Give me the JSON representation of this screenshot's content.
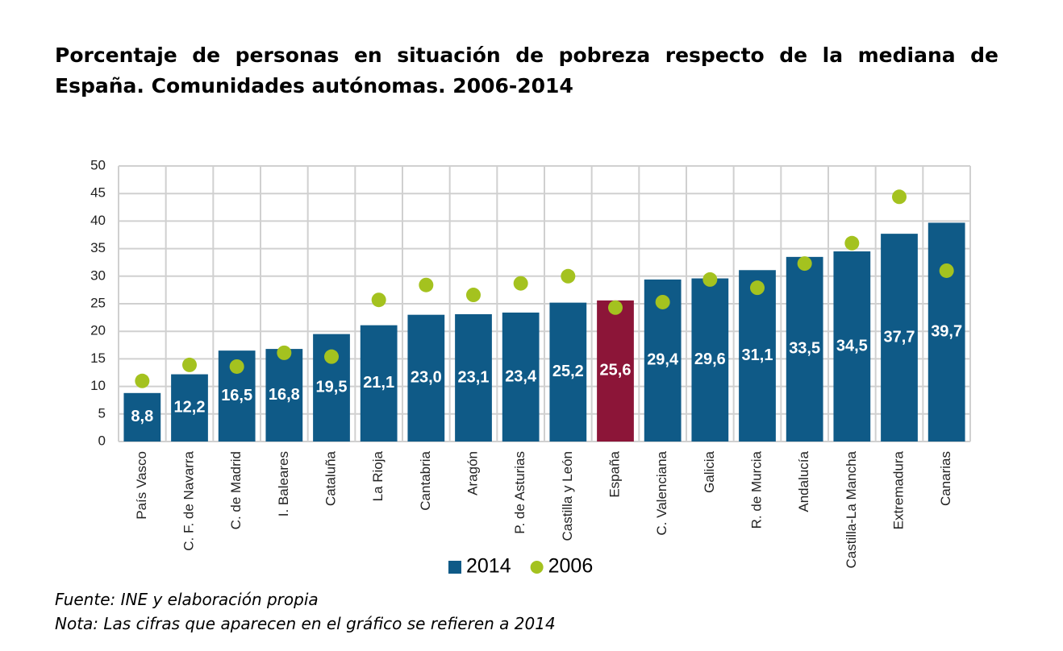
{
  "chart_data": {
    "type": "bar",
    "title": "Porcentaje de personas en situación de pobreza respecto de la mediana de España. Comunidades autónomas. 2006-2014",
    "categories": [
      "País Vasco",
      "C. F. de Navarra",
      "C. de Madrid",
      "I. Baleares",
      "Cataluña",
      "La Rioja",
      "Cantabria",
      "Aragón",
      "P. de Asturias",
      "Castilla y León",
      "España",
      "C. Valenciana",
      "Galicia",
      "R. de Murcia",
      "Andalucía",
      "Castilla-La Mancha",
      "Extremadura",
      "Canarias"
    ],
    "series": [
      {
        "name": "2014",
        "color": "#0f5a87",
        "colors": [
          "#0f5a87",
          "#0f5a87",
          "#0f5a87",
          "#0f5a87",
          "#0f5a87",
          "#0f5a87",
          "#0f5a87",
          "#0f5a87",
          "#0f5a87",
          "#0f5a87",
          "#8c1538",
          "#0f5a87",
          "#0f5a87",
          "#0f5a87",
          "#0f5a87",
          "#0f5a87",
          "#0f5a87",
          "#0f5a87"
        ],
        "values": [
          8.8,
          12.2,
          16.5,
          16.8,
          19.5,
          21.1,
          23.0,
          23.1,
          23.4,
          25.2,
          25.6,
          29.4,
          29.6,
          31.1,
          33.5,
          34.5,
          37.7,
          39.7
        ],
        "value_labels": [
          "8,8",
          "12,2",
          "16,5",
          "16,8",
          "19,5",
          "21,1",
          "23,0",
          "23,1",
          "23,4",
          "25,2",
          "25,6",
          "29,4",
          "29,6",
          "31,1",
          "33,5",
          "34,5",
          "37,7",
          "39,7"
        ]
      },
      {
        "name": "2006",
        "type": "scatter",
        "color": "#a4c21f",
        "values": [
          11.0,
          13.9,
          13.6,
          16.1,
          15.4,
          25.7,
          28.4,
          26.6,
          28.7,
          30.0,
          24.3,
          25.3,
          29.4,
          27.9,
          32.3,
          36.0,
          44.4,
          31.0
        ]
      }
    ],
    "ylim": [
      0,
      50
    ],
    "yticks": [
      0,
      5,
      10,
      15,
      20,
      25,
      30,
      35,
      40,
      45,
      50
    ],
    "grid": true,
    "legend": "bottom",
    "notes": [
      "Fuente: INE y elaboración propia",
      "Nota: Las cifras que aparecen en el gráfico se refieren a 2014"
    ]
  }
}
